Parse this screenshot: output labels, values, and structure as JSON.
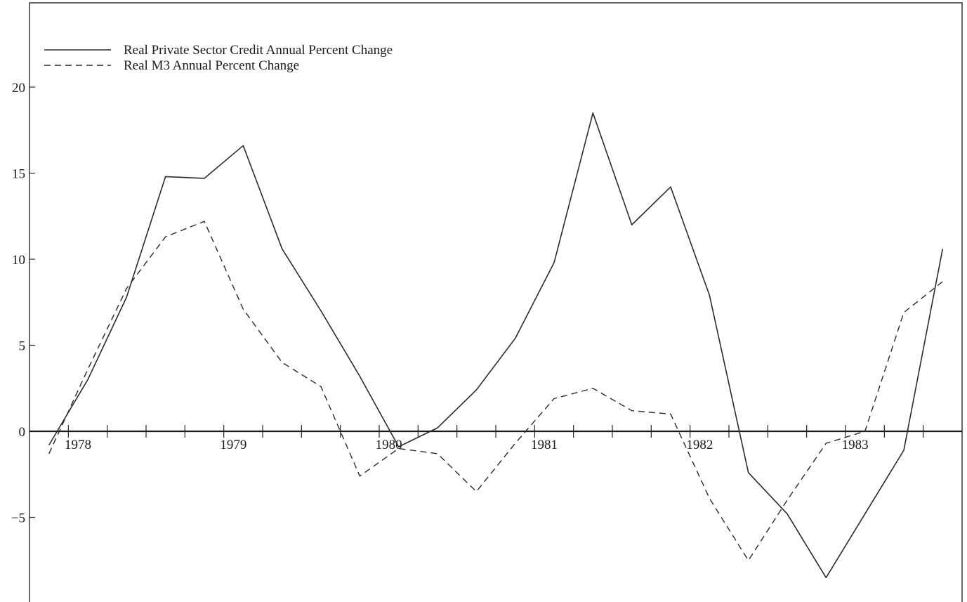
{
  "chart_data": {
    "type": "line",
    "title": "",
    "xlabel": "",
    "ylabel": "",
    "xlim": [
      1977.625,
      1983.625
    ],
    "ylim": [
      -9,
      24
    ],
    "y_ticks": [
      20,
      15,
      10,
      5,
      0,
      -5
    ],
    "y_tick_labels": [
      "20",
      "15",
      "10",
      "5",
      "0",
      "−5"
    ],
    "x_ticks": [
      1978,
      1979,
      1980,
      1981,
      1982,
      1983
    ],
    "x_tick_labels": [
      "1978",
      "1979",
      "1980",
      "1981",
      "1982",
      "1983"
    ],
    "x_quarter_step": 0.25,
    "grid": false,
    "legend_position": "top-left",
    "series": [
      {
        "name": "Real Private Sector Credit Annual Percent Change",
        "style": "solid",
        "x": [
          1977.75,
          1978.0,
          1978.25,
          1978.5,
          1978.75,
          1979.0,
          1979.25,
          1979.5,
          1979.75,
          1980.0,
          1980.25,
          1980.5,
          1980.75,
          1981.0,
          1981.25,
          1981.5,
          1981.75,
          1982.0,
          1982.25,
          1982.5,
          1982.75,
          1983.0,
          1983.25,
          1983.5
        ],
        "values": [
          -0.8,
          3.0,
          7.8,
          14.8,
          14.7,
          16.6,
          10.6,
          7.0,
          3.2,
          -0.9,
          0.2,
          2.4,
          5.4,
          9.8,
          18.5,
          12.0,
          14.2,
          7.9,
          -2.4,
          -4.8,
          -8.5,
          -4.8,
          -1.1,
          10.6
        ]
      },
      {
        "name": "Real M3 Annual Percent Change",
        "style": "dashed",
        "x": [
          1977.75,
          1978.0,
          1978.25,
          1978.5,
          1978.75,
          1979.0,
          1979.25,
          1979.5,
          1979.75,
          1980.0,
          1980.25,
          1980.5,
          1980.75,
          1981.0,
          1981.25,
          1981.5,
          1981.75,
          1982.0,
          1982.25,
          1982.5,
          1982.75,
          1983.0,
          1983.25,
          1983.5
        ],
        "values": [
          -1.3,
          3.6,
          8.3,
          11.3,
          12.2,
          7.1,
          4.0,
          2.6,
          -2.6,
          -1.0,
          -1.3,
          -3.5,
          -0.7,
          1.9,
          2.5,
          1.2,
          1.0,
          -3.9,
          -7.5,
          -4.0,
          -0.7,
          0.0,
          6.9,
          8.7
        ]
      }
    ]
  },
  "colors": {
    "line": "#2a2a2a",
    "axis": "#1a1a1a",
    "background": "#ffffff"
  }
}
